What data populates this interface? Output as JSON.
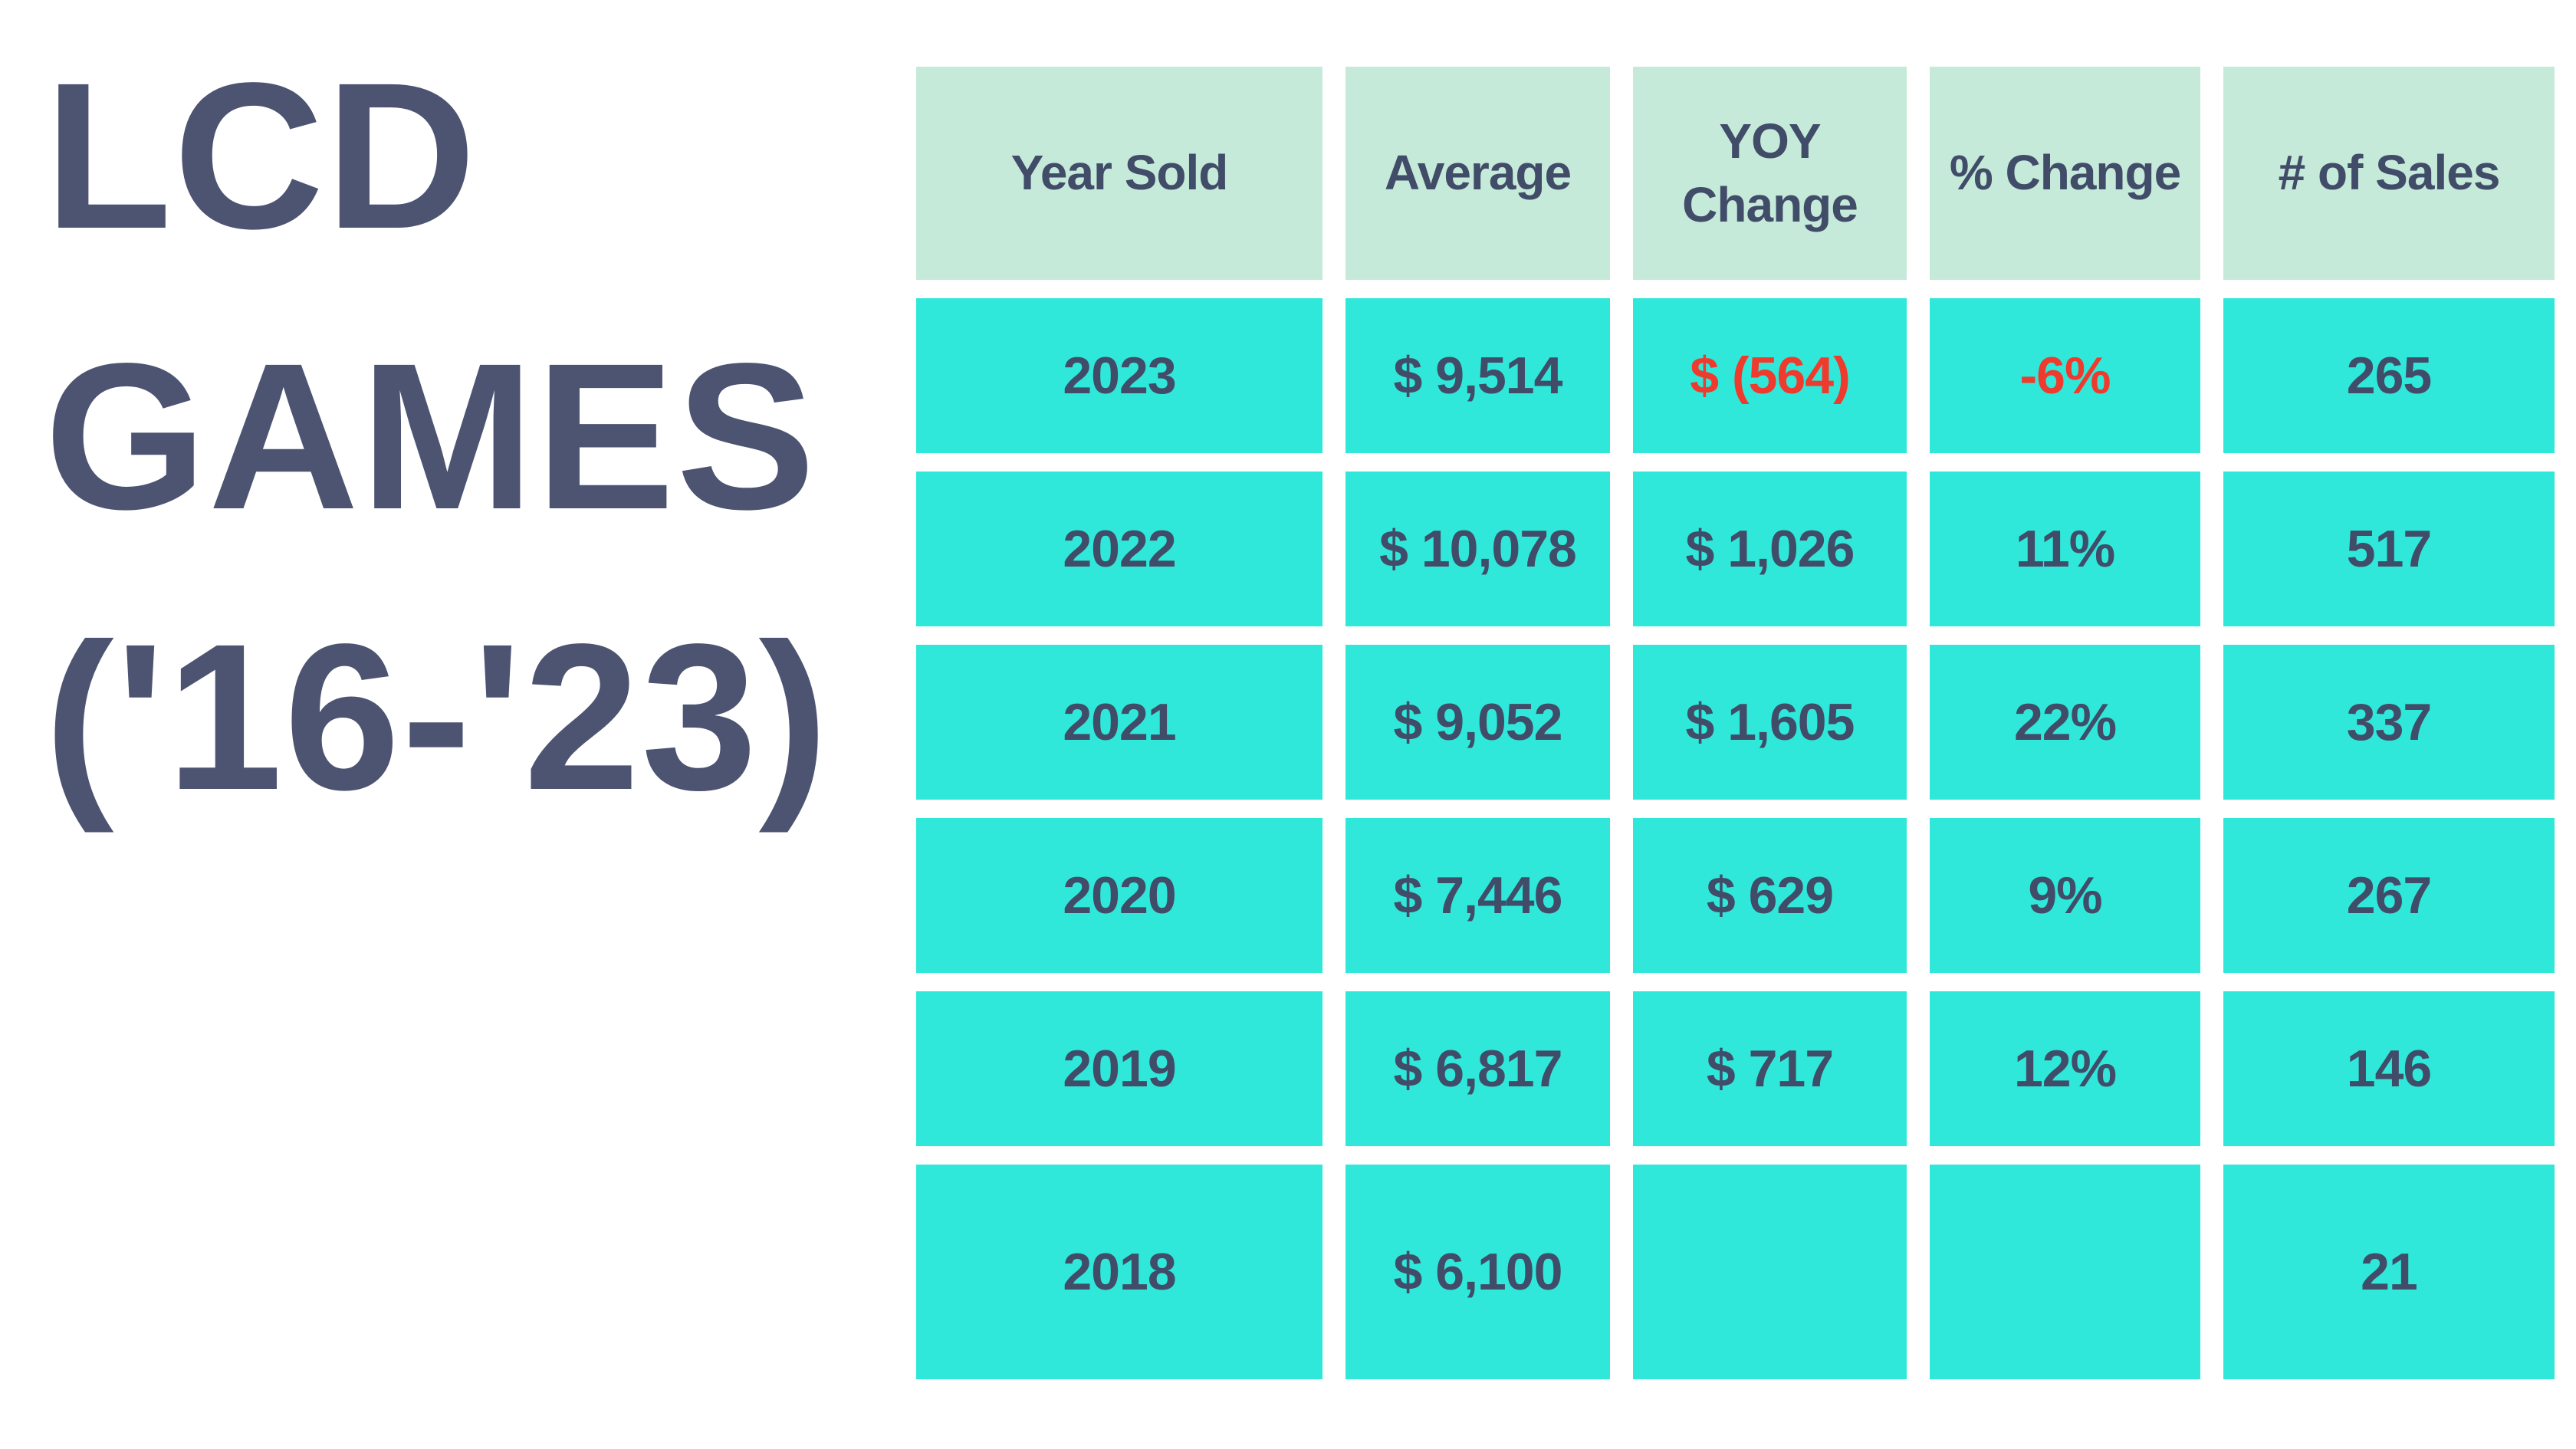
{
  "title": {
    "full": "LCD GAMES ('16-'23)",
    "lines": [
      "LCD",
      "GAMES",
      "('16-'23)"
    ]
  },
  "colors": {
    "background": "#ffffff",
    "cyan": "#2fe8da",
    "mint": "#c6ead9",
    "slate": "#4d5472",
    "text": "#414c69",
    "negative": "#ee3b2d"
  },
  "table": {
    "columns": {
      "year": "Year Sold",
      "average": "Average",
      "yoy": "YOY Change",
      "pct": "% Change",
      "sales": "# of Sales"
    },
    "rows": [
      {
        "year": "2023",
        "average": "$ 9,514",
        "yoy": "$ (564)",
        "pct": "-6%",
        "sales": "265"
      },
      {
        "year": "2022",
        "average": "$ 10,078",
        "yoy": "$ 1,026",
        "pct": "11%",
        "sales": "517"
      },
      {
        "year": "2021",
        "average": "$ 9,052",
        "yoy": "$ 1,605",
        "pct": "22%",
        "sales": "337"
      },
      {
        "year": "2020",
        "average": "$ 7,446",
        "yoy": "$ 629",
        "pct": "9%",
        "sales": "267"
      },
      {
        "year": "2019",
        "average": "$ 6,817",
        "yoy": "$ 717",
        "pct": "12%",
        "sales": "146"
      },
      {
        "year": "2018",
        "average": "$ 6,100",
        "yoy": "",
        "pct": "",
        "sales": "21"
      }
    ]
  },
  "chart_data": {
    "type": "table",
    "title": "LCD GAMES ('16-'23)",
    "columns": [
      "Year Sold",
      "Average",
      "YOY Change",
      "% Change",
      "# of Sales"
    ],
    "rows": [
      [
        "2023",
        9514,
        -564,
        -6,
        265
      ],
      [
        "2022",
        10078,
        1026,
        11,
        517
      ],
      [
        "2021",
        9052,
        1605,
        22,
        337
      ],
      [
        "2020",
        7446,
        629,
        9,
        267
      ],
      [
        "2019",
        6817,
        717,
        12,
        146
      ],
      [
        "2018",
        6100,
        null,
        null,
        21
      ]
    ],
    "notes": "Negative YOY values for 2023 shown in red; 2018 YOY and % Change cells are blank"
  }
}
